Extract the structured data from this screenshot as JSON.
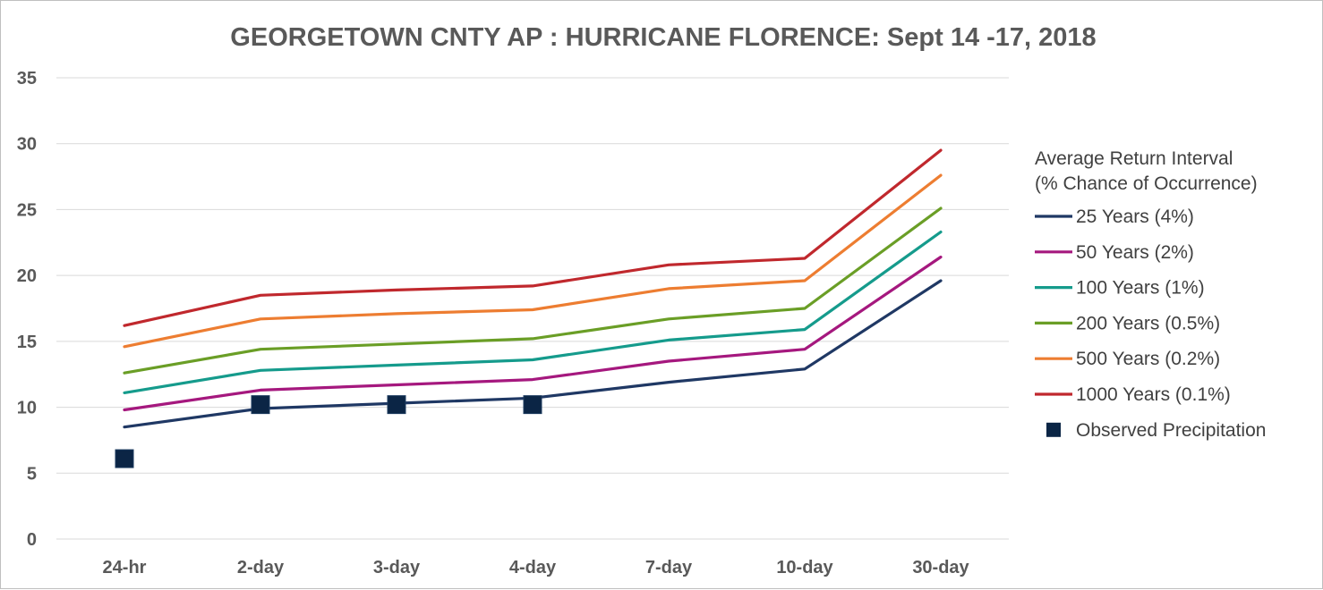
{
  "chart_data": {
    "type": "line",
    "title": "GEORGETOWN CNTY AP : HURRICANE FLORENCE: Sept 14 -17, 2018",
    "xlabel": "",
    "ylabel": "",
    "categories": [
      "24-hr",
      "2-day",
      "3-day",
      "4-day",
      "7-day",
      "10-day",
      "30-day"
    ],
    "ylim": [
      0,
      35
    ],
    "yticks": [
      0,
      5,
      10,
      15,
      20,
      25,
      30,
      35
    ],
    "grid": true,
    "legend": {
      "placement": "right",
      "title_line1": "Average Return Interval",
      "title_line2": "(% Chance of Occurrence)"
    },
    "series": [
      {
        "name": "25 Years (4%)",
        "color": "#1f3864",
        "values": [
          8.5,
          9.9,
          10.3,
          10.7,
          11.9,
          12.9,
          19.6
        ]
      },
      {
        "name": "50 Years (2%)",
        "color": "#a5187e",
        "values": [
          9.8,
          11.3,
          11.7,
          12.1,
          13.5,
          14.4,
          21.4
        ]
      },
      {
        "name": "100 Years (1%)",
        "color": "#159b8c",
        "values": [
          11.1,
          12.8,
          13.2,
          13.6,
          15.1,
          15.9,
          23.3
        ]
      },
      {
        "name": "200 Years (0.5%)",
        "color": "#6a9e26",
        "values": [
          12.6,
          14.4,
          14.8,
          15.2,
          16.7,
          17.5,
          25.1
        ]
      },
      {
        "name": "500 Years (0.2%)",
        "color": "#ed7d31",
        "values": [
          14.6,
          16.7,
          17.1,
          17.4,
          19.0,
          19.6,
          27.6
        ]
      },
      {
        "name": "1000 Years (0.1%)",
        "color": "#c0282d",
        "values": [
          16.2,
          18.5,
          18.9,
          19.2,
          20.8,
          21.3,
          29.5
        ]
      }
    ],
    "observed": {
      "name": "Observed Precipitation",
      "color": "#0b2545",
      "values": [
        6.1,
        10.2,
        10.2,
        10.2,
        null,
        null,
        null
      ]
    }
  }
}
